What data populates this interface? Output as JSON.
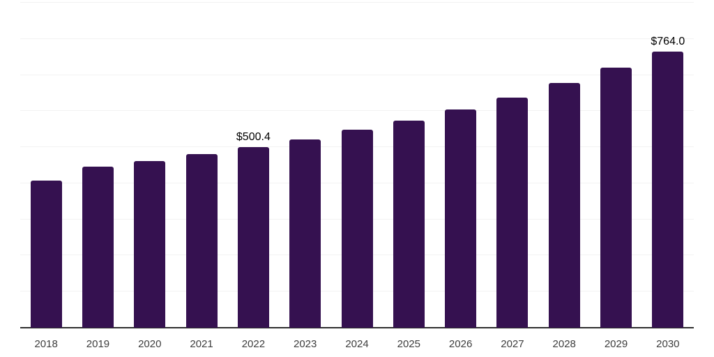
{
  "chart_data": {
    "type": "bar",
    "title": "",
    "xlabel": "",
    "ylabel": "",
    "categories": [
      "2018",
      "2019",
      "2020",
      "2021",
      "2022",
      "2023",
      "2024",
      "2025",
      "2026",
      "2027",
      "2028",
      "2029",
      "2030"
    ],
    "values": [
      408,
      447,
      462,
      480,
      500.4,
      522,
      548,
      573,
      605,
      638,
      677,
      720,
      764
    ],
    "data_labels": [
      {
        "category": "2022",
        "text": "$500.4"
      },
      {
        "category": "2030",
        "text": "$764.0"
      }
    ],
    "ylim": [
      0,
      900
    ],
    "grid_step": 100,
    "grid": true,
    "legend": false,
    "colors": {
      "bar": "#351150",
      "gridline": "#f2f2f2",
      "axis_line": "#2e2e2e",
      "data_label": "#000000",
      "tick_label": "#3d3d3d",
      "background": "#ffffff"
    }
  }
}
